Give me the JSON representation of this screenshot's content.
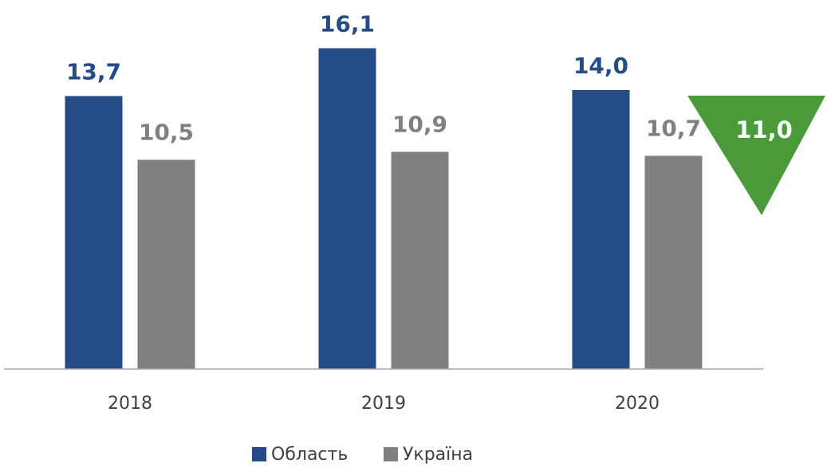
{
  "chart_data": {
    "type": "bar",
    "categories": [
      "2018",
      "2019",
      "2020"
    ],
    "series": [
      {
        "name": "Область",
        "color": "#264c87",
        "values": [
          13.7,
          16.1,
          14.0
        ],
        "value_labels": [
          "13,7",
          "16,1",
          "14,0"
        ]
      },
      {
        "name": "Україна",
        "color": "#808080",
        "values": [
          10.5,
          10.9,
          10.7
        ],
        "value_labels": [
          "10,5",
          "10,9",
          "10,7"
        ]
      }
    ],
    "ylim": [
      0,
      18.5
    ],
    "legend": "bottom",
    "annotations": [
      {
        "text": "11,0",
        "color": "#4a9a3a"
      }
    ]
  }
}
